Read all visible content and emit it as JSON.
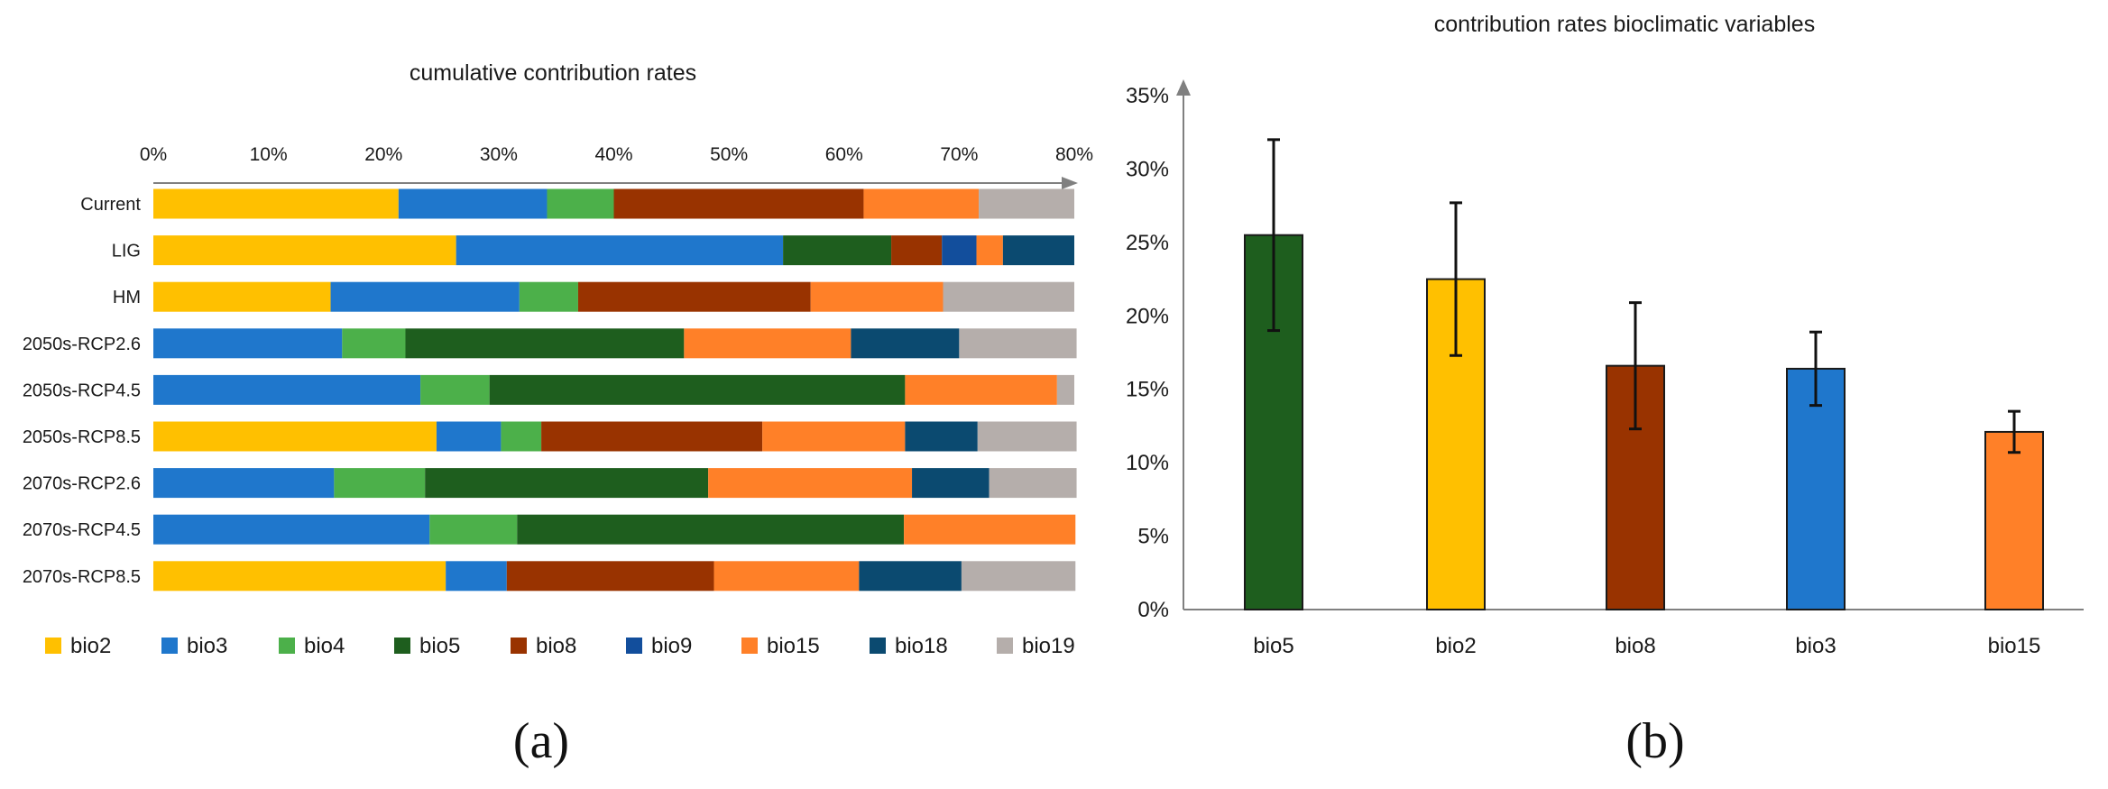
{
  "colors": {
    "bio2": "#FFC000",
    "bio3": "#1F77CC",
    "bio4": "#4CB04A",
    "bio5": "#1E5E1E",
    "bio8": "#993300",
    "bio9": "#124E9C",
    "bio15": "#FF8028",
    "bio18": "#0B4A70",
    "bio19": "#B5AEAB",
    "axis": "#808080"
  },
  "panel_labels": {
    "a": "(a)",
    "b": "(b)"
  },
  "chart_data": [
    {
      "type": "bar",
      "orientation": "horizontal",
      "stacked": true,
      "title": "cumulative contribution rates",
      "xlim": [
        0,
        80
      ],
      "xticks": [
        "0%",
        "10%",
        "20%",
        "30%",
        "40%",
        "50%",
        "60%",
        "70%",
        "80%"
      ],
      "categories": [
        "Current",
        "LIG",
        "HM",
        "2050s-RCP2.6",
        "2050s-RCP4.5",
        "2050s-RCP8.5",
        "2070s-RCP2.6",
        "2070s-RCP4.5",
        "2070s-RCP8.5"
      ],
      "legend": [
        "bio2",
        "bio3",
        "bio4",
        "bio5",
        "bio8",
        "bio9",
        "bio15",
        "bio18",
        "bio19"
      ],
      "legend_position": "bottom",
      "rows": [
        [
          {
            "s": "bio2",
            "v": 21.3
          },
          {
            "s": "bio3",
            "v": 12.9
          },
          {
            "s": "bio4",
            "v": 5.8
          },
          {
            "s": "bio8",
            "v": 21.7
          },
          {
            "s": "bio15",
            "v": 10.0
          },
          {
            "s": "bio19",
            "v": 8.3
          }
        ],
        [
          {
            "s": "bio2",
            "v": 26.3
          },
          {
            "s": "bio3",
            "v": 28.4
          },
          {
            "s": "bio5",
            "v": 9.4
          },
          {
            "s": "bio8",
            "v": 4.4
          },
          {
            "s": "bio9",
            "v": 3.0
          },
          {
            "s": "bio15",
            "v": 2.3
          },
          {
            "s": "bio18",
            "v": 6.2
          }
        ],
        [
          {
            "s": "bio2",
            "v": 15.4
          },
          {
            "s": "bio3",
            "v": 16.4
          },
          {
            "s": "bio4",
            "v": 5.1
          },
          {
            "s": "bio8",
            "v": 20.2
          },
          {
            "s": "bio15",
            "v": 11.5
          },
          {
            "s": "bio19",
            "v": 11.4
          }
        ],
        [
          {
            "s": "bio3",
            "v": 16.4
          },
          {
            "s": "bio4",
            "v": 5.5
          },
          {
            "s": "bio5",
            "v": 24.2
          },
          {
            "s": "bio15",
            "v": 14.5
          },
          {
            "s": "bio18",
            "v": 9.4
          },
          {
            "s": "bio19",
            "v": 10.2
          }
        ],
        [
          {
            "s": "bio3",
            "v": 23.2
          },
          {
            "s": "bio4",
            "v": 6.0
          },
          {
            "s": "bio5",
            "v": 36.1
          },
          {
            "s": "bio15",
            "v": 13.2
          },
          {
            "s": "bio19",
            "v": 1.5
          }
        ],
        [
          {
            "s": "bio2",
            "v": 24.6
          },
          {
            "s": "bio3",
            "v": 5.6
          },
          {
            "s": "bio4",
            "v": 3.5
          },
          {
            "s": "bio8",
            "v": 19.2
          },
          {
            "s": "bio15",
            "v": 12.4
          },
          {
            "s": "bio18",
            "v": 6.3
          },
          {
            "s": "bio19",
            "v": 8.6
          }
        ],
        [
          {
            "s": "bio3",
            "v": 15.7
          },
          {
            "s": "bio4",
            "v": 7.9
          },
          {
            "s": "bio5",
            "v": 24.6
          },
          {
            "s": "bio15",
            "v": 17.7
          },
          {
            "s": "bio18",
            "v": 6.7
          },
          {
            "s": "bio19",
            "v": 7.6
          }
        ],
        [
          {
            "s": "bio3",
            "v": 24.0
          },
          {
            "s": "bio4",
            "v": 7.6
          },
          {
            "s": "bio5",
            "v": 33.6
          },
          {
            "s": "bio15",
            "v": 14.9
          }
        ],
        [
          {
            "s": "bio2",
            "v": 25.4
          },
          {
            "s": "bio3",
            "v": 5.3
          },
          {
            "s": "bio8",
            "v": 18.0
          },
          {
            "s": "bio15",
            "v": 12.6
          },
          {
            "s": "bio18",
            "v": 8.9
          },
          {
            "s": "bio19",
            "v": 9.9
          }
        ]
      ]
    },
    {
      "type": "bar",
      "title": "contribution rates bioclimatic variables",
      "categories": [
        "bio5",
        "bio2",
        "bio8",
        "bio3",
        "bio15"
      ],
      "values": [
        25.5,
        22.5,
        16.6,
        16.4,
        12.1
      ],
      "error_low": [
        19.0,
        17.3,
        12.3,
        13.9,
        10.7
      ],
      "error_high": [
        32.0,
        27.7,
        20.9,
        18.9,
        13.5
      ],
      "ylim": [
        0,
        35
      ],
      "yticks": [
        "0%",
        "5%",
        "10%",
        "15%",
        "20%",
        "25%",
        "30%",
        "35%"
      ],
      "xlabel": "",
      "ylabel": ""
    }
  ]
}
